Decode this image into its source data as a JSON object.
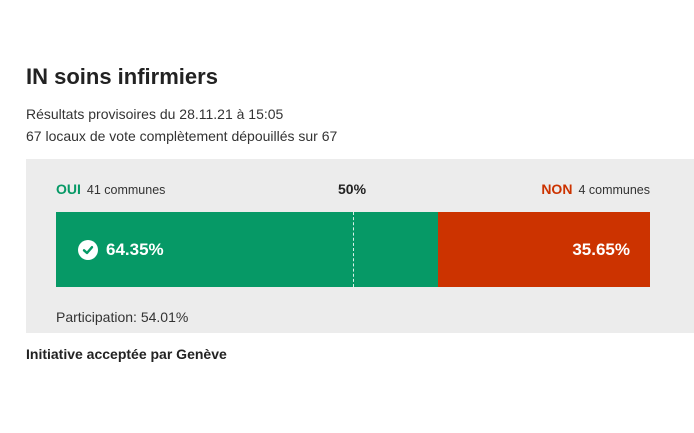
{
  "header": {
    "title": "IN soins infirmiers",
    "subtitle_line1": "Résultats provisoires du 28.11.21 à 15:05",
    "subtitle_line2": "67 locaux de vote complètement dépouillés sur 67"
  },
  "vote": {
    "yes_label": "OUI",
    "yes_communes": "41 communes",
    "half_label": "50%",
    "no_label": "NON",
    "no_communes": "4 communes",
    "yes_pct_text": "64.35%",
    "no_pct_text": "35.65%",
    "yes_share": 64.35,
    "no_share": 35.65,
    "participation": "Participation: 54.01%",
    "yes_color": "#069966",
    "no_color": "#cc3300"
  },
  "result_text": "Initiative acceptée par Genève",
  "icons": {
    "accepted": "check-circle-icon"
  }
}
